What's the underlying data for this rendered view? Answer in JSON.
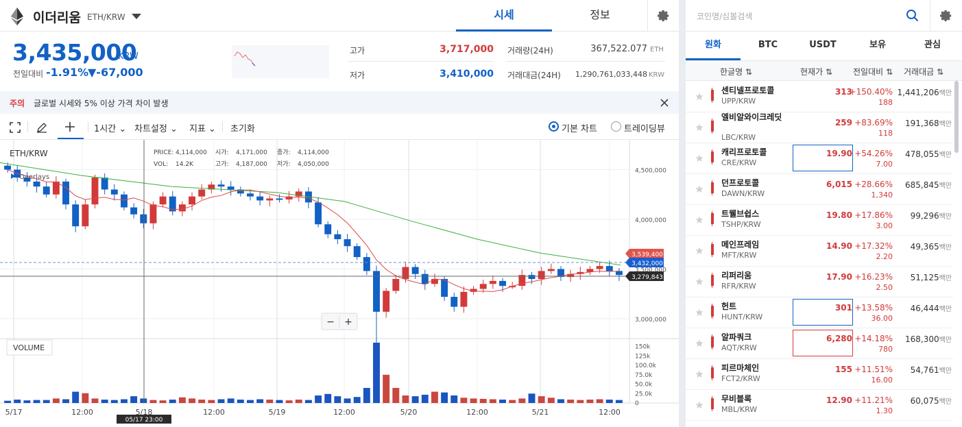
{
  "header": {
    "coin_name": "이더리움",
    "pair": "ETH/KRW",
    "tabs": [
      {
        "label": "시세"
      },
      {
        "label": "정보"
      }
    ]
  },
  "summary": {
    "price": "3,435,000",
    "unit": "KRW",
    "change_label": "전일대비",
    "change_rate": "-1.91%",
    "change_amount": "▼-67,000",
    "high_label": "고가",
    "high_value": "3,717,000",
    "low_label": "저가",
    "low_value": "3,410,000",
    "volume_label": "거래량(24H)",
    "volume_value": "367,522.077",
    "volume_unit": "ETH",
    "trade_amount_label": "거래대금(24H)",
    "trade_amount_value": "1,290,761,033,448",
    "trade_amount_unit": "KRW"
  },
  "notice": {
    "tag": "주의",
    "text": "글로벌 시세와 5% 이상 가격 차이 발생"
  },
  "toolbar": {
    "interval": "1시간",
    "chart_settings": "차트설정",
    "indicators": "지표",
    "reset": "초기화",
    "basic_chart": "기본 차트",
    "trading_view": "트레이딩뷰"
  },
  "chart": {
    "pair_label": "ETH/KRW",
    "overlays_label": "Overlays",
    "ohlc": {
      "price_label": "PRICE:",
      "price": "4,114,000",
      "open_label": "시가:",
      "open": "4,171,000",
      "close_label": "종가:",
      "close": "4,114,000",
      "vol_label": "VOL:",
      "vol": "14.2K",
      "high_label": "고가:",
      "high": "4,187,000",
      "low_label": "저가:",
      "low": "4,050,000"
    },
    "volume_label": "VOLUME",
    "price_ticks": [
      "4,500,000",
      "4,000,000",
      "3,500,000",
      "3,000,000"
    ],
    "volume_ticks": [
      "150k",
      "125k",
      "100.0k",
      "75.0k",
      "50.0k",
      "25.0k",
      "0"
    ],
    "time_ticks": [
      "5/17",
      "12:00",
      "5/18",
      "12:00",
      "5/19",
      "12:00",
      "5/20",
      "12:00",
      "5/21",
      "12:00"
    ],
    "cursor_time": "05/17 23:00",
    "tag_ma": "3,539,400",
    "tag_last": "3,432,000",
    "tag_cursor": "3,279,843",
    "zoom_out": "−",
    "zoom_in": "+"
  },
  "chart_data": {
    "type": "candlestick",
    "x_ticks": [
      "5/17",
      "12:00",
      "5/18",
      "12:00",
      "5/19",
      "12:00",
      "5/20",
      "12:00",
      "5/21",
      "12:00"
    ],
    "y_ticks": [
      3000000,
      3500000,
      4000000,
      4500000
    ],
    "ylim": [
      2800000,
      4800000
    ],
    "volume_ylim": [
      0,
      160000
    ],
    "last_price": 3432000,
    "ma_value": 3539400,
    "close_trajectory": [
      4500000,
      4420000,
      4380000,
      4330000,
      4250000,
      4380000,
      4150000,
      3930000,
      4150000,
      4420000,
      4300000,
      4250000,
      4120000,
      4050000,
      3960000,
      4150000,
      4230000,
      4080000,
      4150000,
      4230000,
      4300000,
      4350000,
      4330000,
      4300000,
      4260000,
      4230000,
      4190000,
      4210000,
      4200000,
      4230000,
      4280000,
      4170000,
      3950000,
      3850000,
      3800000,
      3730000,
      3620000,
      3480000,
      3070000,
      3280000,
      3400000,
      3520000,
      3450000,
      3350000,
      3400000,
      3220000,
      3120000,
      3270000,
      3300000,
      3350000,
      3380000,
      3330000,
      3330000,
      3440000,
      3400000,
      3480000,
      3500000,
      3420000,
      3450000,
      3470000,
      3500000,
      3530000,
      3480000,
      3440000
    ],
    "volume_trajectory": [
      6000,
      9000,
      7000,
      8000,
      8000,
      12000,
      10000,
      30000,
      26000,
      12000,
      9000,
      8000,
      10000,
      18000,
      12000,
      8000,
      7000,
      9000,
      15000,
      12000,
      9000,
      8000,
      10000,
      12000,
      9000,
      8000,
      10000,
      9000,
      8000,
      7000,
      9000,
      8000,
      20000,
      24000,
      18000,
      12000,
      16000,
      40000,
      160000,
      75000,
      40000,
      20000,
      18000,
      22000,
      30000,
      28000,
      20000,
      14000,
      12000,
      11000,
      10000,
      9000,
      8000,
      12000,
      25000,
      18000,
      14000,
      10000,
      9000,
      8000,
      9000,
      10000,
      9000,
      8000
    ]
  },
  "market": {
    "search_placeholder": "코인명/심볼검색",
    "tabs": [
      {
        "label": "원화"
      },
      {
        "label": "BTC"
      },
      {
        "label": "USDT"
      },
      {
        "label": "보유"
      },
      {
        "label": "관심"
      }
    ],
    "columns": {
      "name": "한글명 ⇅",
      "price": "현재가 ⇅",
      "change": "전일대비 ⇅",
      "volume": "거래대금 ⇅"
    },
    "rows": [
      {
        "name": "센티넬프로토콜",
        "pair": "UPP/KRW",
        "price": "313",
        "rate": "+150.40%",
        "amount": "188",
        "volume": "1,441,206",
        "vol_unit": "백만"
      },
      {
        "name": "엘비알와이크레딧",
        "pair": "LBC/KRW",
        "price": "259",
        "rate": "+83.69%",
        "amount": "118",
        "volume": "191,368",
        "vol_unit": "백만"
      },
      {
        "name": "캐리프로토콜",
        "pair": "CRE/KRW",
        "price": "19.90",
        "rate": "+54.26%",
        "amount": "7.00",
        "volume": "478,055",
        "vol_unit": "백만"
      },
      {
        "name": "던프로토콜",
        "pair": "DAWN/KRW",
        "price": "6,015",
        "rate": "+28.66%",
        "amount": "1,340",
        "volume": "685,845",
        "vol_unit": "백만"
      },
      {
        "name": "트웰브쉽스",
        "pair": "TSHP/KRW",
        "price": "19.80",
        "rate": "+17.86%",
        "amount": "3.00",
        "volume": "99,296",
        "vol_unit": "백만"
      },
      {
        "name": "메인프레임",
        "pair": "MFT/KRW",
        "price": "14.90",
        "rate": "+17.32%",
        "amount": "2.20",
        "volume": "49,365",
        "vol_unit": "백만"
      },
      {
        "name": "리퍼리움",
        "pair": "RFR/KRW",
        "price": "17.90",
        "rate": "+16.23%",
        "amount": "2.50",
        "volume": "51,125",
        "vol_unit": "백만"
      },
      {
        "name": "헌트",
        "pair": "HUNT/KRW",
        "price": "301",
        "rate": "+13.58%",
        "amount": "36.00",
        "volume": "46,444",
        "vol_unit": "백만"
      },
      {
        "name": "알파쿼크",
        "pair": "AQT/KRW",
        "price": "6,280",
        "rate": "+14.18%",
        "amount": "780",
        "volume": "168,300",
        "vol_unit": "백만"
      },
      {
        "name": "피르마체인",
        "pair": "FCT2/KRW",
        "price": "155",
        "rate": "+11.51%",
        "amount": "16.00",
        "volume": "54,761",
        "vol_unit": "백만"
      },
      {
        "name": "무비블록",
        "pair": "MBL/KRW",
        "price": "12.90",
        "rate": "+11.21%",
        "amount": "1.30",
        "volume": "60,075",
        "vol_unit": "백만"
      }
    ]
  },
  "colors": {
    "up": "#d23a3a",
    "down": "#1261c4",
    "ma_short": "#e04848",
    "ma_long": "#3cb043"
  }
}
